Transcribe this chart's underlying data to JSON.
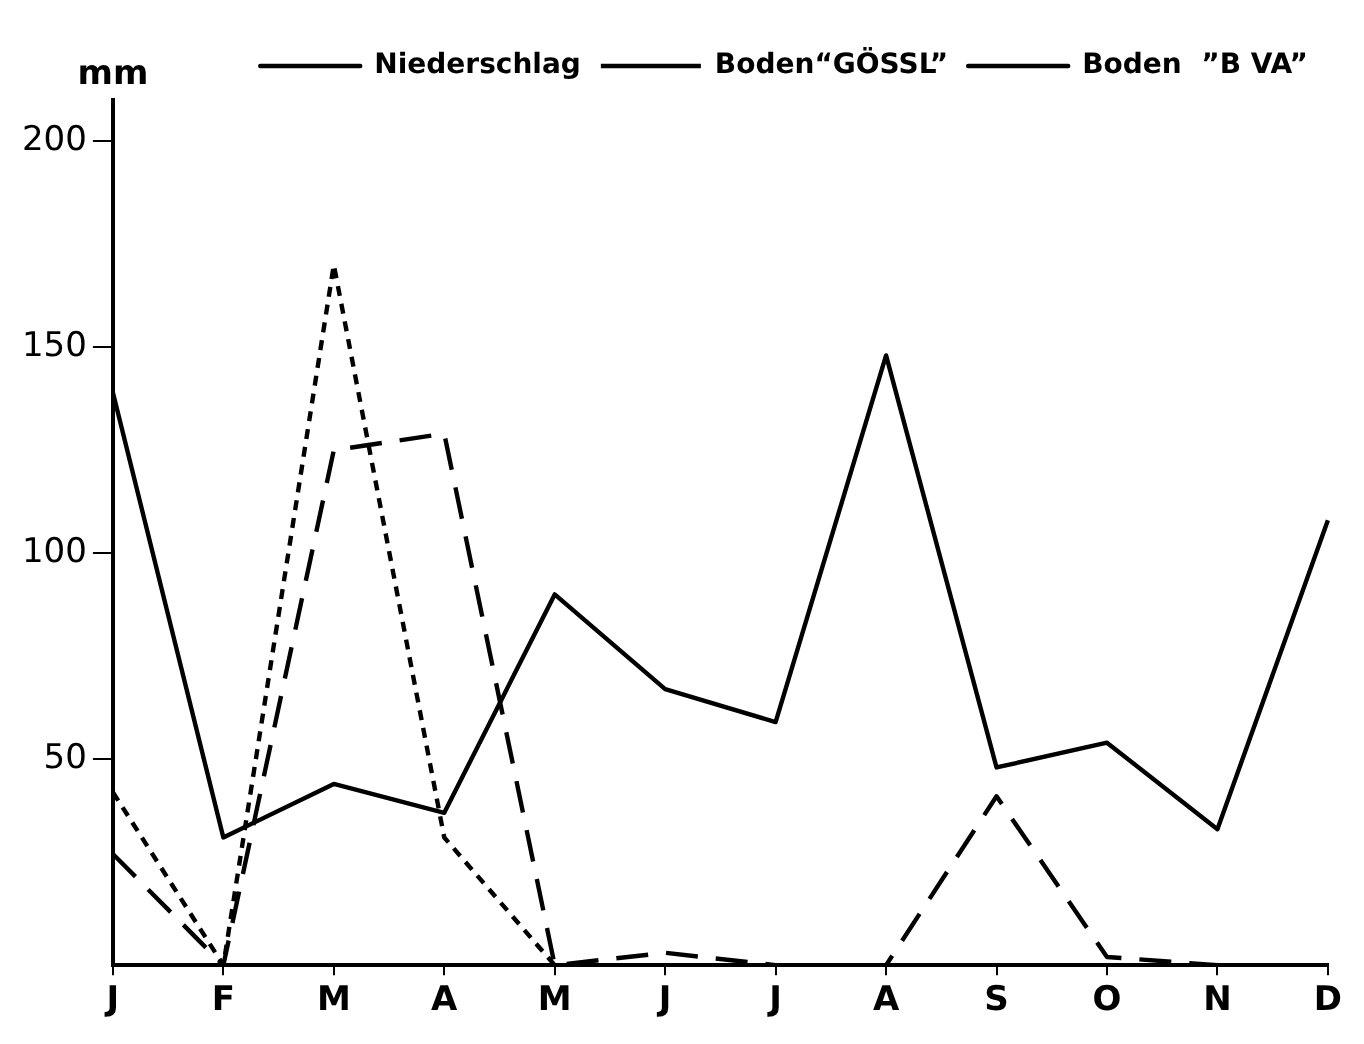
{
  "chart_data": {
    "type": "line",
    "ylabel": "mm",
    "categories": [
      "J",
      "F",
      "M",
      "A",
      "M",
      "J",
      "J",
      "A",
      "S",
      "O",
      "N",
      "D"
    ],
    "series": [
      {
        "name": "Niederschlag",
        "color": "#000000",
        "line_style": "solid",
        "values": [
          139,
          31,
          44,
          37,
          90,
          67,
          59,
          148,
          48,
          54,
          33,
          108
        ]
      },
      {
        "name": "Boden“GÖSSL”",
        "color": "#000000",
        "line_style": "dashed",
        "values": [
          27,
          0,
          125,
          129,
          0,
          3,
          0,
          0,
          41,
          2,
          0,
          0
        ]
      },
      {
        "name": "Boden  ”B VA”",
        "color": "#000000",
        "line_style": "dotted",
        "values": [
          42,
          0,
          170,
          31,
          0,
          null,
          null,
          null,
          null,
          null,
          null,
          null
        ]
      }
    ],
    "ylim": [
      0,
      210
    ],
    "yticks": [
      50,
      100,
      150,
      200
    ],
    "grid": false,
    "legend": "top right",
    "marker": "none"
  }
}
